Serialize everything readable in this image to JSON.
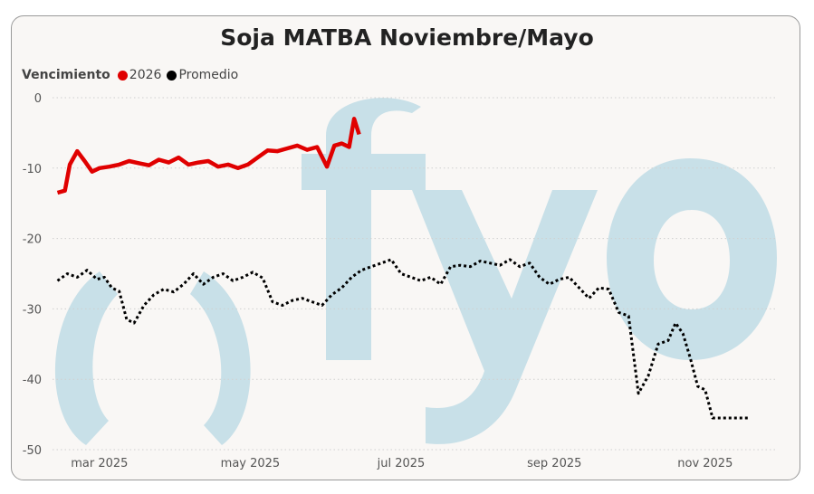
{
  "chart_data": {
    "type": "line",
    "title": "Soja MATBA Noviembre/Mayo",
    "legend_title": "Vencimiento",
    "legend_position": "top-left",
    "ylim": [
      -50,
      0
    ],
    "yticks": [
      0,
      -10,
      -20,
      -30,
      -40,
      -50
    ],
    "xticks": [
      "mar 2025",
      "may 2025",
      "jul 2025",
      "sep 2025",
      "nov 2025"
    ],
    "xtick_dates": [
      "2025-03-01",
      "2025-05-01",
      "2025-07-01",
      "2025-09-01",
      "2025-11-01"
    ],
    "xlim": [
      "2025-02-10",
      "2025-11-30"
    ],
    "grid": "horizontal dotted",
    "series": [
      {
        "name": "2026",
        "color": "#e00000",
        "style": "solid",
        "x": [
          "2025-02-12",
          "2025-02-15",
          "2025-02-17",
          "2025-02-20",
          "2025-02-23",
          "2025-02-26",
          "2025-03-01",
          "2025-03-05",
          "2025-03-09",
          "2025-03-13",
          "2025-03-17",
          "2025-03-21",
          "2025-03-25",
          "2025-03-29",
          "2025-04-02",
          "2025-04-06",
          "2025-04-10",
          "2025-04-14",
          "2025-04-18",
          "2025-04-22",
          "2025-04-26",
          "2025-04-30",
          "2025-05-04",
          "2025-05-08",
          "2025-05-12",
          "2025-05-16",
          "2025-05-20",
          "2025-05-24",
          "2025-05-28",
          "2025-06-01",
          "2025-06-04",
          "2025-06-07",
          "2025-06-10",
          "2025-06-12",
          "2025-06-14"
        ],
        "values": [
          -13.5,
          -13.2,
          -9.5,
          -7.6,
          -9.0,
          -10.5,
          -10.0,
          -9.8,
          -9.5,
          -9.0,
          -9.3,
          -9.6,
          -8.8,
          -9.2,
          -8.5,
          -9.5,
          -9.2,
          -9.0,
          -9.8,
          -9.5,
          -10.0,
          -9.5,
          -8.5,
          -7.5,
          -7.6,
          -7.2,
          -6.8,
          -7.4,
          -7.0,
          -9.8,
          -6.8,
          -6.5,
          -7.0,
          -3.0,
          -5.2
        ]
      },
      {
        "name": "Promedio",
        "color": "#000000",
        "style": "dotted",
        "x": [
          "2025-02-12",
          "2025-02-16",
          "2025-02-20",
          "2025-02-24",
          "2025-02-28",
          "2025-03-03",
          "2025-03-06",
          "2025-03-09",
          "2025-03-12",
          "2025-03-15",
          "2025-03-19",
          "2025-03-23",
          "2025-03-27",
          "2025-03-31",
          "2025-04-04",
          "2025-04-08",
          "2025-04-12",
          "2025-04-16",
          "2025-04-20",
          "2025-04-24",
          "2025-04-28",
          "2025-05-02",
          "2025-05-06",
          "2025-05-10",
          "2025-05-14",
          "2025-05-18",
          "2025-05-22",
          "2025-05-26",
          "2025-05-30",
          "2025-06-03",
          "2025-06-07",
          "2025-06-11",
          "2025-06-15",
          "2025-06-19",
          "2025-06-23",
          "2025-06-27",
          "2025-07-01",
          "2025-07-05",
          "2025-07-09",
          "2025-07-13",
          "2025-07-17",
          "2025-07-21",
          "2025-07-25",
          "2025-07-29",
          "2025-08-02",
          "2025-08-06",
          "2025-08-10",
          "2025-08-14",
          "2025-08-18",
          "2025-08-22",
          "2025-08-26",
          "2025-08-30",
          "2025-09-03",
          "2025-09-07",
          "2025-09-11",
          "2025-09-15",
          "2025-09-19",
          "2025-09-23",
          "2025-09-27",
          "2025-10-01",
          "2025-10-05",
          "2025-10-09",
          "2025-10-13",
          "2025-10-17",
          "2025-10-20",
          "2025-10-23",
          "2025-10-26",
          "2025-10-29",
          "2025-11-01",
          "2025-11-04",
          "2025-11-07",
          "2025-11-10",
          "2025-11-13",
          "2025-11-16",
          "2025-11-19"
        ],
        "values": [
          -26.0,
          -25.0,
          -25.5,
          -24.5,
          -25.8,
          -25.5,
          -27.0,
          -27.5,
          -31.5,
          -32.0,
          -29.5,
          -28.0,
          -27.2,
          -27.6,
          -26.5,
          -25.0,
          -26.5,
          -25.5,
          -25.0,
          -26.0,
          -25.5,
          -24.8,
          -25.6,
          -29.0,
          -29.5,
          -28.8,
          -28.5,
          -29.0,
          -29.5,
          -28.0,
          -27.0,
          -25.5,
          -24.5,
          -24.0,
          -23.5,
          -23.0,
          -25.0,
          -25.5,
          -26.0,
          -25.5,
          -26.5,
          -24.0,
          -23.8,
          -24.0,
          -23.2,
          -23.5,
          -23.8,
          -23.0,
          -24.0,
          -23.5,
          -25.5,
          -26.5,
          -25.8,
          -25.5,
          -27.0,
          -28.5,
          -27.0,
          -27.2,
          -30.5,
          -31.0,
          -42.0,
          -39.5,
          -35.0,
          -34.5,
          -32.0,
          -33.5,
          -37.0,
          -41.0,
          -41.5,
          -45.5,
          -45.5,
          -45.5,
          -45.5,
          -45.5,
          -45.5
        ]
      }
    ]
  },
  "watermark": {
    "color": "#c8e0e8"
  }
}
